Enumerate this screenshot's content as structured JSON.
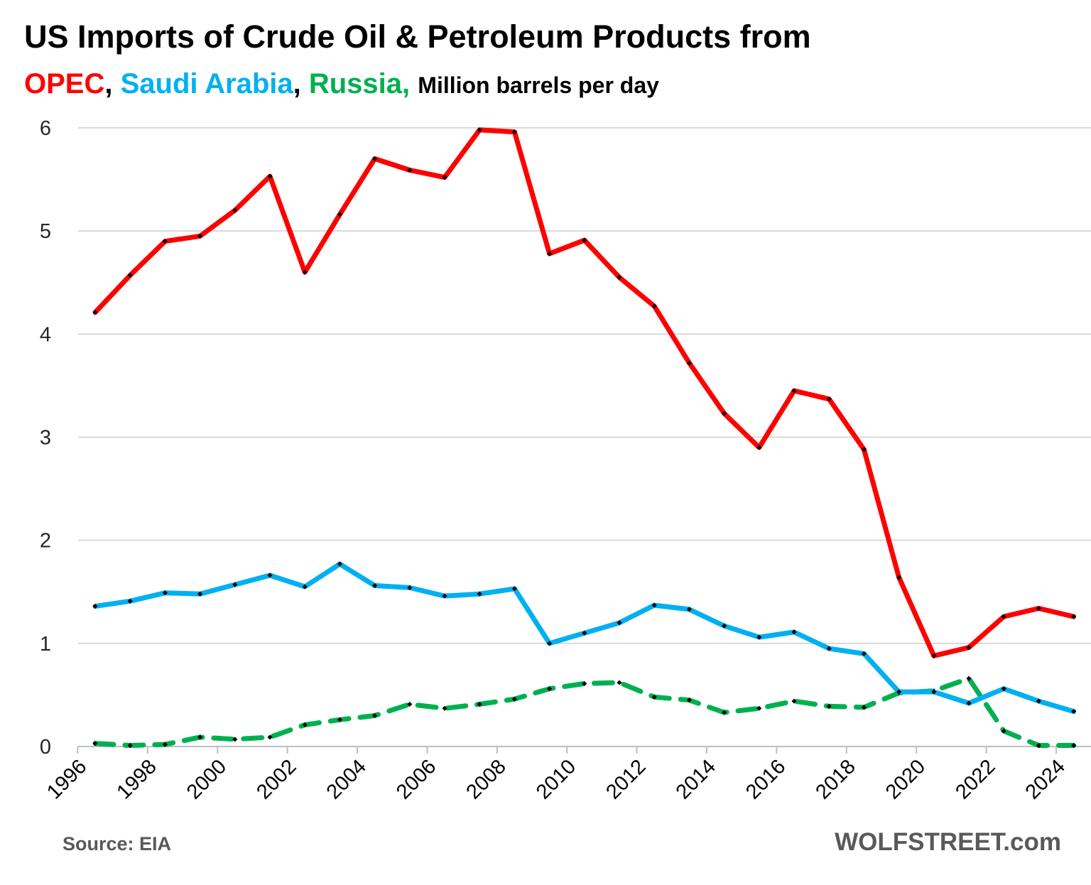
{
  "header": {
    "title": "US Imports of Crude Oil & Petroleum Products from",
    "sub_opec": "OPEC",
    "sub_sep1": ", ",
    "sub_saudi": "Saudi Arabia",
    "sub_sep2": ", ",
    "sub_russia": "Russia,",
    "sub_unit": "Million barrels per day"
  },
  "footer": {
    "source": "Source: EIA",
    "brand": "WOLFSTREET.com"
  },
  "colors": {
    "opec": "#ff0000",
    "saudi": "#00b0f0",
    "russia": "#00b050",
    "marker": "#000000",
    "grid": "#d9d9d9"
  },
  "chart_data": {
    "type": "line",
    "title": "US Imports of Crude Oil & Petroleum Products from",
    "ylabel": "Million barrels per day",
    "xlabel": "",
    "ylim": [
      0,
      6
    ],
    "yticks": [
      0,
      1,
      2,
      3,
      4,
      5,
      6
    ],
    "xticks": [
      "1996",
      "1998",
      "2000",
      "2002",
      "2004",
      "2006",
      "2008",
      "2010",
      "2012",
      "2014",
      "2016",
      "2018",
      "2020",
      "2022",
      "2024"
    ],
    "grid": true,
    "x": [
      1996,
      1997,
      1998,
      1999,
      2000,
      2001,
      2002,
      2003,
      2004,
      2005,
      2006,
      2007,
      2008,
      2009,
      2010,
      2011,
      2012,
      2013,
      2014,
      2015,
      2016,
      2017,
      2018,
      2019,
      2020,
      2021,
      2022,
      2023,
      2024
    ],
    "series": [
      {
        "name": "OPEC",
        "style": "solid",
        "values": [
          4.21,
          4.57,
          4.9,
          4.95,
          5.2,
          5.53,
          4.6,
          5.16,
          5.7,
          5.59,
          5.52,
          5.98,
          5.96,
          4.78,
          4.91,
          4.55,
          4.27,
          3.72,
          3.23,
          2.9,
          3.45,
          3.37,
          2.88,
          1.64,
          0.88,
          0.96,
          1.26,
          1.34,
          1.26
        ]
      },
      {
        "name": "Saudi Arabia",
        "style": "solid",
        "values": [
          1.36,
          1.41,
          1.49,
          1.48,
          1.57,
          1.66,
          1.55,
          1.77,
          1.56,
          1.54,
          1.46,
          1.48,
          1.53,
          1.0,
          1.1,
          1.2,
          1.37,
          1.33,
          1.17,
          1.06,
          1.11,
          0.95,
          0.9,
          0.53,
          0.53,
          0.42,
          0.56,
          0.44,
          0.34
        ]
      },
      {
        "name": "Russia",
        "style": "dashed",
        "values": [
          0.03,
          0.01,
          0.02,
          0.09,
          0.07,
          0.09,
          0.21,
          0.26,
          0.3,
          0.41,
          0.37,
          0.41,
          0.46,
          0.56,
          0.61,
          0.62,
          0.48,
          0.45,
          0.33,
          0.37,
          0.44,
          0.39,
          0.38,
          0.52,
          0.54,
          0.66,
          0.15,
          0.01,
          0.01
        ]
      }
    ]
  }
}
